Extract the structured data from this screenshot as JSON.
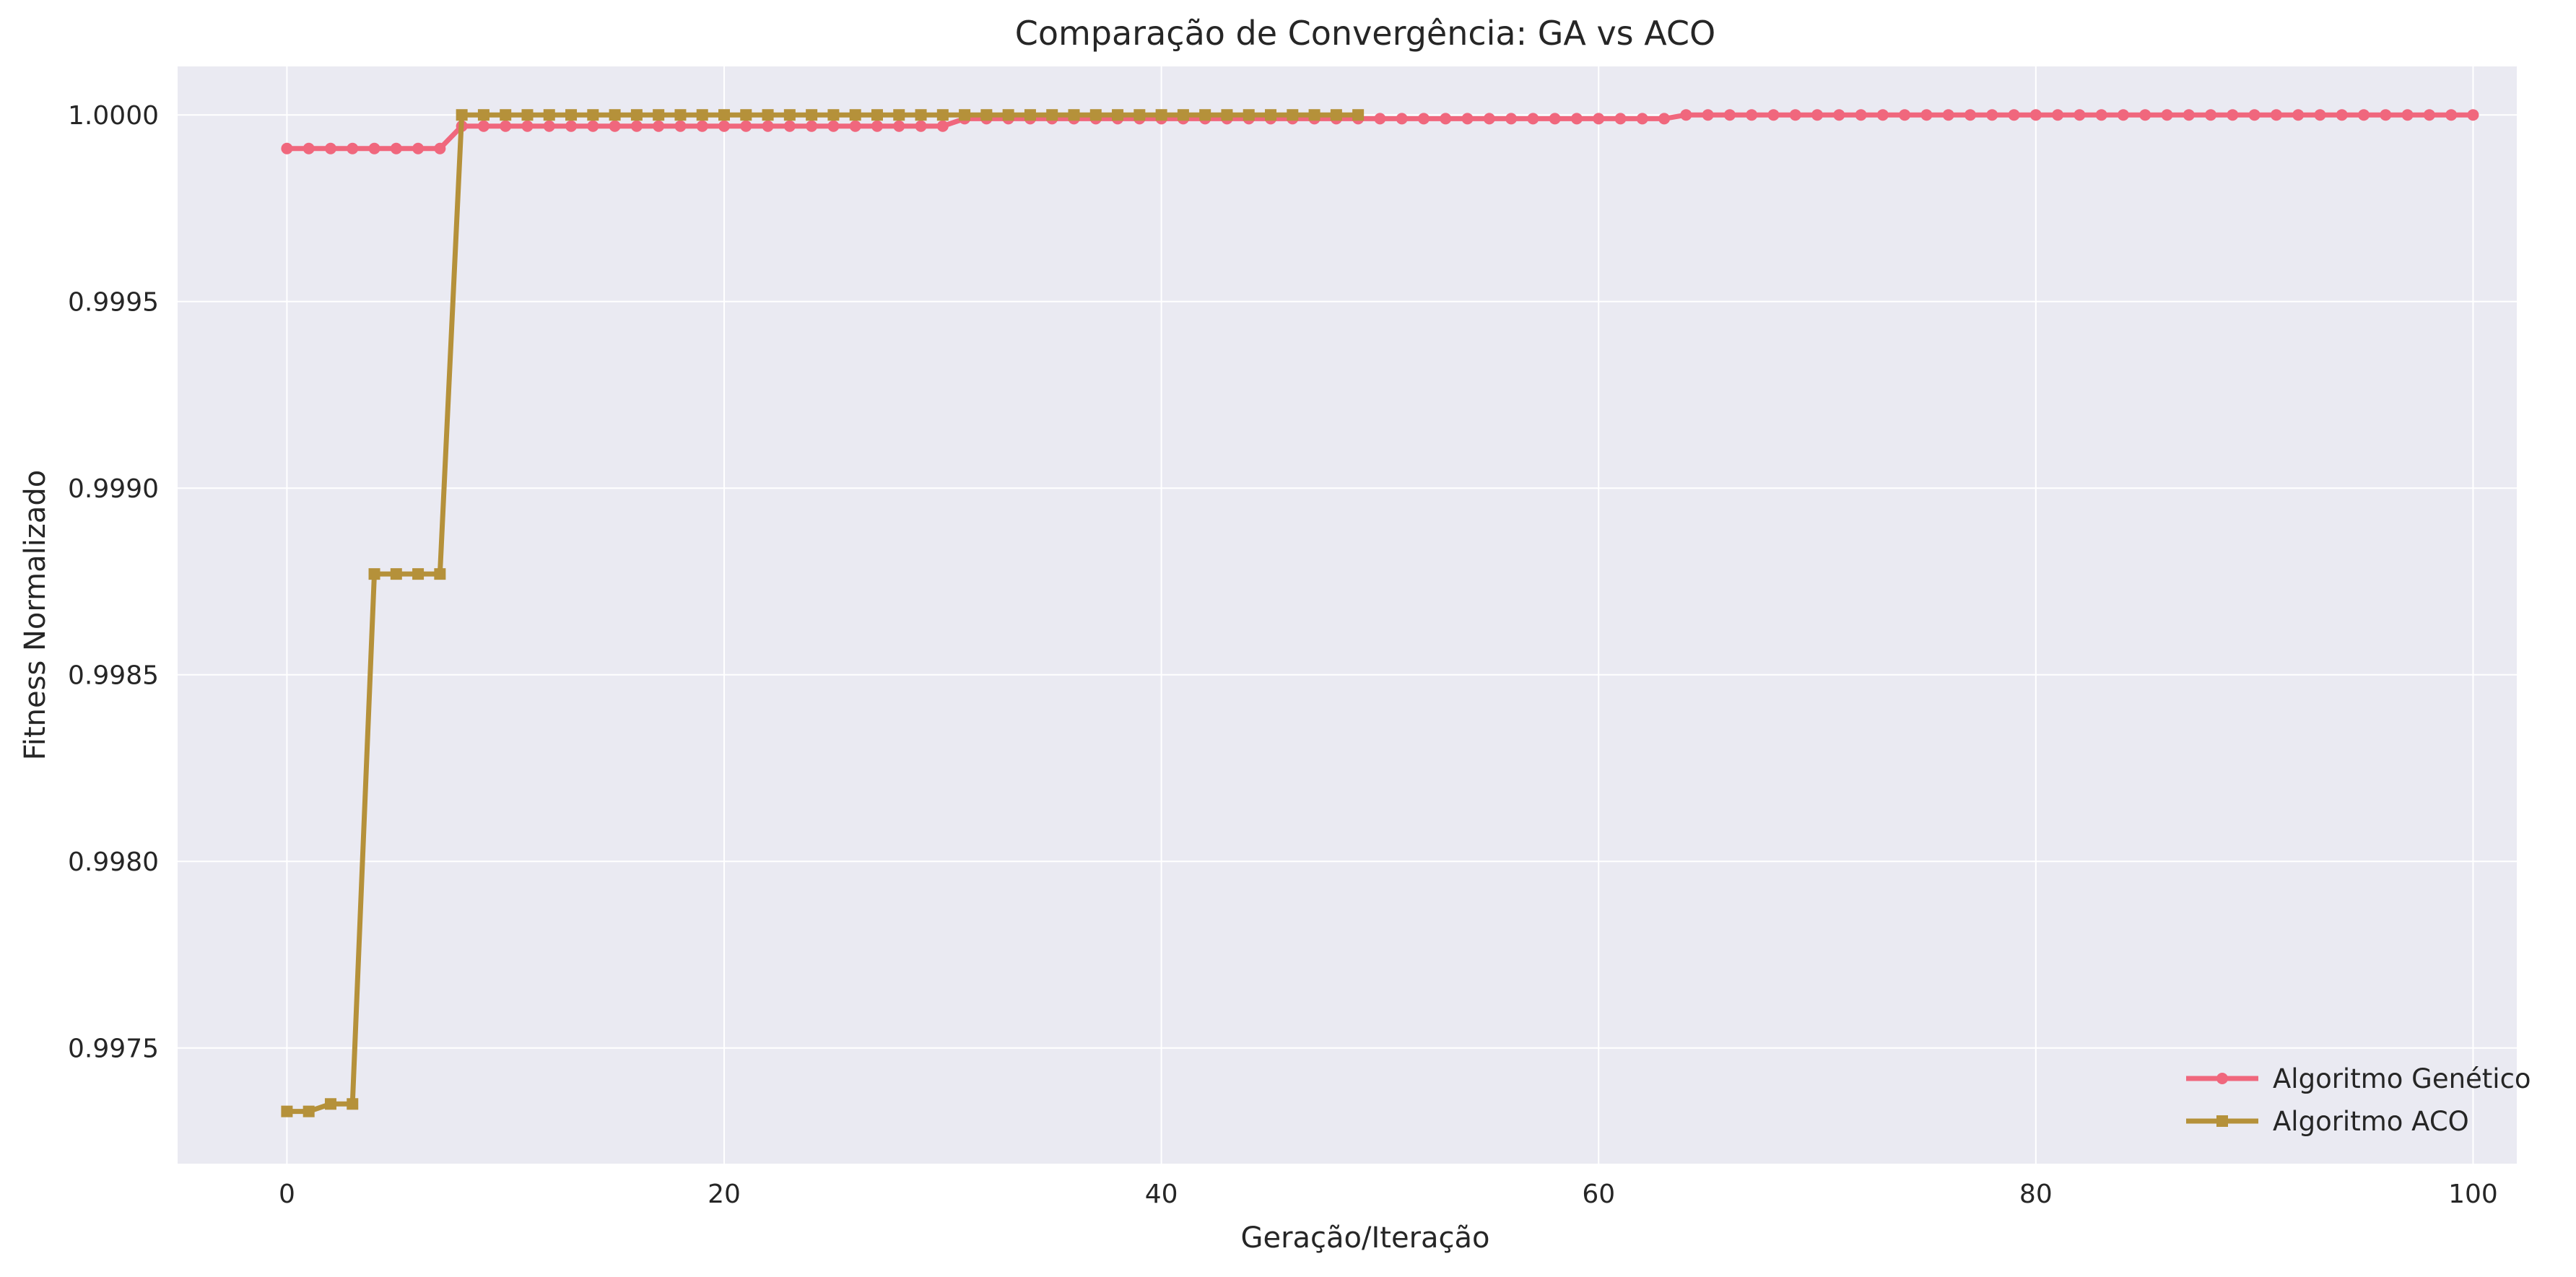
{
  "chart_data": {
    "type": "line",
    "title": "Comparação de Convergência: GA vs ACO",
    "xlabel": "Geração/Iteração",
    "ylabel": "Fitness Normalizado",
    "xlim": [
      -5,
      102
    ],
    "ylim": [
      0.99719,
      1.00013
    ],
    "xticks": [
      0,
      20,
      40,
      60,
      80,
      100
    ],
    "yticks": [
      0.9975,
      0.998,
      0.9985,
      0.999,
      0.9995,
      1.0
    ],
    "xtick_labels": [
      "0",
      "20",
      "40",
      "60",
      "80",
      "100"
    ],
    "ytick_labels": [
      "0.9975",
      "0.9980",
      "0.9985",
      "0.9990",
      "0.9995",
      "1.0000"
    ],
    "grid": true,
    "legend_position": "lower-right",
    "colors": {
      "background": "#eaeaf2",
      "grid": "#ffffff",
      "ga": "#f0677d",
      "aco": "#b5913a"
    },
    "series": [
      {
        "name": "Algoritmo Genético",
        "marker": "circle",
        "x": [
          0,
          1,
          2,
          3,
          4,
          5,
          6,
          7,
          8,
          9,
          10,
          11,
          12,
          13,
          14,
          15,
          16,
          17,
          18,
          19,
          20,
          21,
          22,
          23,
          24,
          25,
          26,
          27,
          28,
          29,
          30,
          31,
          32,
          33,
          34,
          35,
          36,
          37,
          38,
          39,
          40,
          41,
          42,
          43,
          44,
          45,
          46,
          47,
          48,
          49,
          50,
          51,
          52,
          53,
          54,
          55,
          56,
          57,
          58,
          59,
          60,
          61,
          62,
          63,
          64,
          65,
          66,
          67,
          68,
          69,
          70,
          71,
          72,
          73,
          74,
          75,
          76,
          77,
          78,
          79,
          80,
          81,
          82,
          83,
          84,
          85,
          86,
          87,
          88,
          89,
          90,
          91,
          92,
          93,
          94,
          95,
          96,
          97,
          98,
          99,
          100
        ],
        "y": [
          0.99991,
          0.99991,
          0.99991,
          0.99991,
          0.99991,
          0.99991,
          0.99991,
          0.99991,
          0.99997,
          0.99997,
          0.99997,
          0.99997,
          0.99997,
          0.99997,
          0.99997,
          0.99997,
          0.99997,
          0.99997,
          0.99997,
          0.99997,
          0.99997,
          0.99997,
          0.99997,
          0.99997,
          0.99997,
          0.99997,
          0.99997,
          0.99997,
          0.99997,
          0.99997,
          0.99997,
          0.99999,
          0.99999,
          0.99999,
          0.99999,
          0.99999,
          0.99999,
          0.99999,
          0.99999,
          0.99999,
          0.99999,
          0.99999,
          0.99999,
          0.99999,
          0.99999,
          0.99999,
          0.99999,
          0.99999,
          0.99999,
          0.99999,
          0.99999,
          0.99999,
          0.99999,
          0.99999,
          0.99999,
          0.99999,
          0.99999,
          0.99999,
          0.99999,
          0.99999,
          0.99999,
          0.99999,
          0.99999,
          0.99999,
          1.0,
          1.0,
          1.0,
          1.0,
          1.0,
          1.0,
          1.0,
          1.0,
          1.0,
          1.0,
          1.0,
          1.0,
          1.0,
          1.0,
          1.0,
          1.0,
          1.0,
          1.0,
          1.0,
          1.0,
          1.0,
          1.0,
          1.0,
          1.0,
          1.0,
          1.0,
          1.0,
          1.0,
          1.0,
          1.0,
          1.0,
          1.0,
          1.0,
          1.0,
          1.0,
          1.0,
          1.0
        ]
      },
      {
        "name": "Algoritmo ACO",
        "marker": "square",
        "x": [
          0,
          1,
          2,
          3,
          4,
          5,
          6,
          7,
          8,
          9,
          10,
          11,
          12,
          13,
          14,
          15,
          16,
          17,
          18,
          19,
          20,
          21,
          22,
          23,
          24,
          25,
          26,
          27,
          28,
          29,
          30,
          31,
          32,
          33,
          34,
          35,
          36,
          37,
          38,
          39,
          40,
          41,
          42,
          43,
          44,
          45,
          46,
          47,
          48,
          49
        ],
        "y": [
          0.99733,
          0.99733,
          0.99735,
          0.99735,
          0.99877,
          0.99877,
          0.99877,
          0.99877,
          1.0,
          1.0,
          1.0,
          1.0,
          1.0,
          1.0,
          1.0,
          1.0,
          1.0,
          1.0,
          1.0,
          1.0,
          1.0,
          1.0,
          1.0,
          1.0,
          1.0,
          1.0,
          1.0,
          1.0,
          1.0,
          1.0,
          1.0,
          1.0,
          1.0,
          1.0,
          1.0,
          1.0,
          1.0,
          1.0,
          1.0,
          1.0,
          1.0,
          1.0,
          1.0,
          1.0,
          1.0,
          1.0,
          1.0,
          1.0,
          1.0,
          1.0
        ]
      }
    ]
  }
}
